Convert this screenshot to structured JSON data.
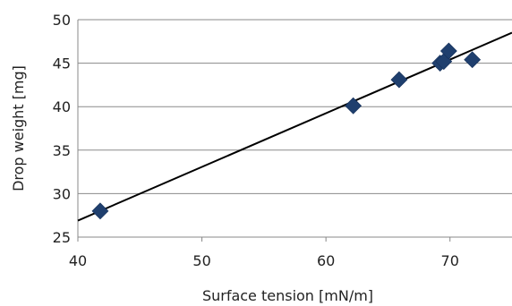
{
  "chart_data": {
    "type": "scatter",
    "title": "",
    "xlabel": "Surface tension [mN/m]",
    "ylabel": "Drop weight [mg]",
    "xlim": [
      40,
      75
    ],
    "ylim": [
      25,
      50
    ],
    "x_ticks": [
      "40",
      "50",
      "60",
      "70"
    ],
    "y_ticks": [
      "25",
      "30",
      "35",
      "40",
      "45",
      "50"
    ],
    "grid": "horizontal",
    "legend": "none",
    "series": [
      {
        "marker": "diamond",
        "color": "#1F3F6E",
        "points": [
          {
            "x": 41.8,
            "y": 28.0
          },
          {
            "x": 62.2,
            "y": 40.1
          },
          {
            "x": 65.9,
            "y": 43.1
          },
          {
            "x": 69.2,
            "y": 45.0
          },
          {
            "x": 69.5,
            "y": 45.2
          },
          {
            "x": 69.9,
            "y": 46.4
          },
          {
            "x": 71.8,
            "y": 45.4
          }
        ]
      }
    ],
    "trendline": {
      "color": "#000000",
      "points": [
        {
          "x": 40,
          "y": 26.9
        },
        {
          "x": 75,
          "y": 48.5
        }
      ]
    }
  }
}
